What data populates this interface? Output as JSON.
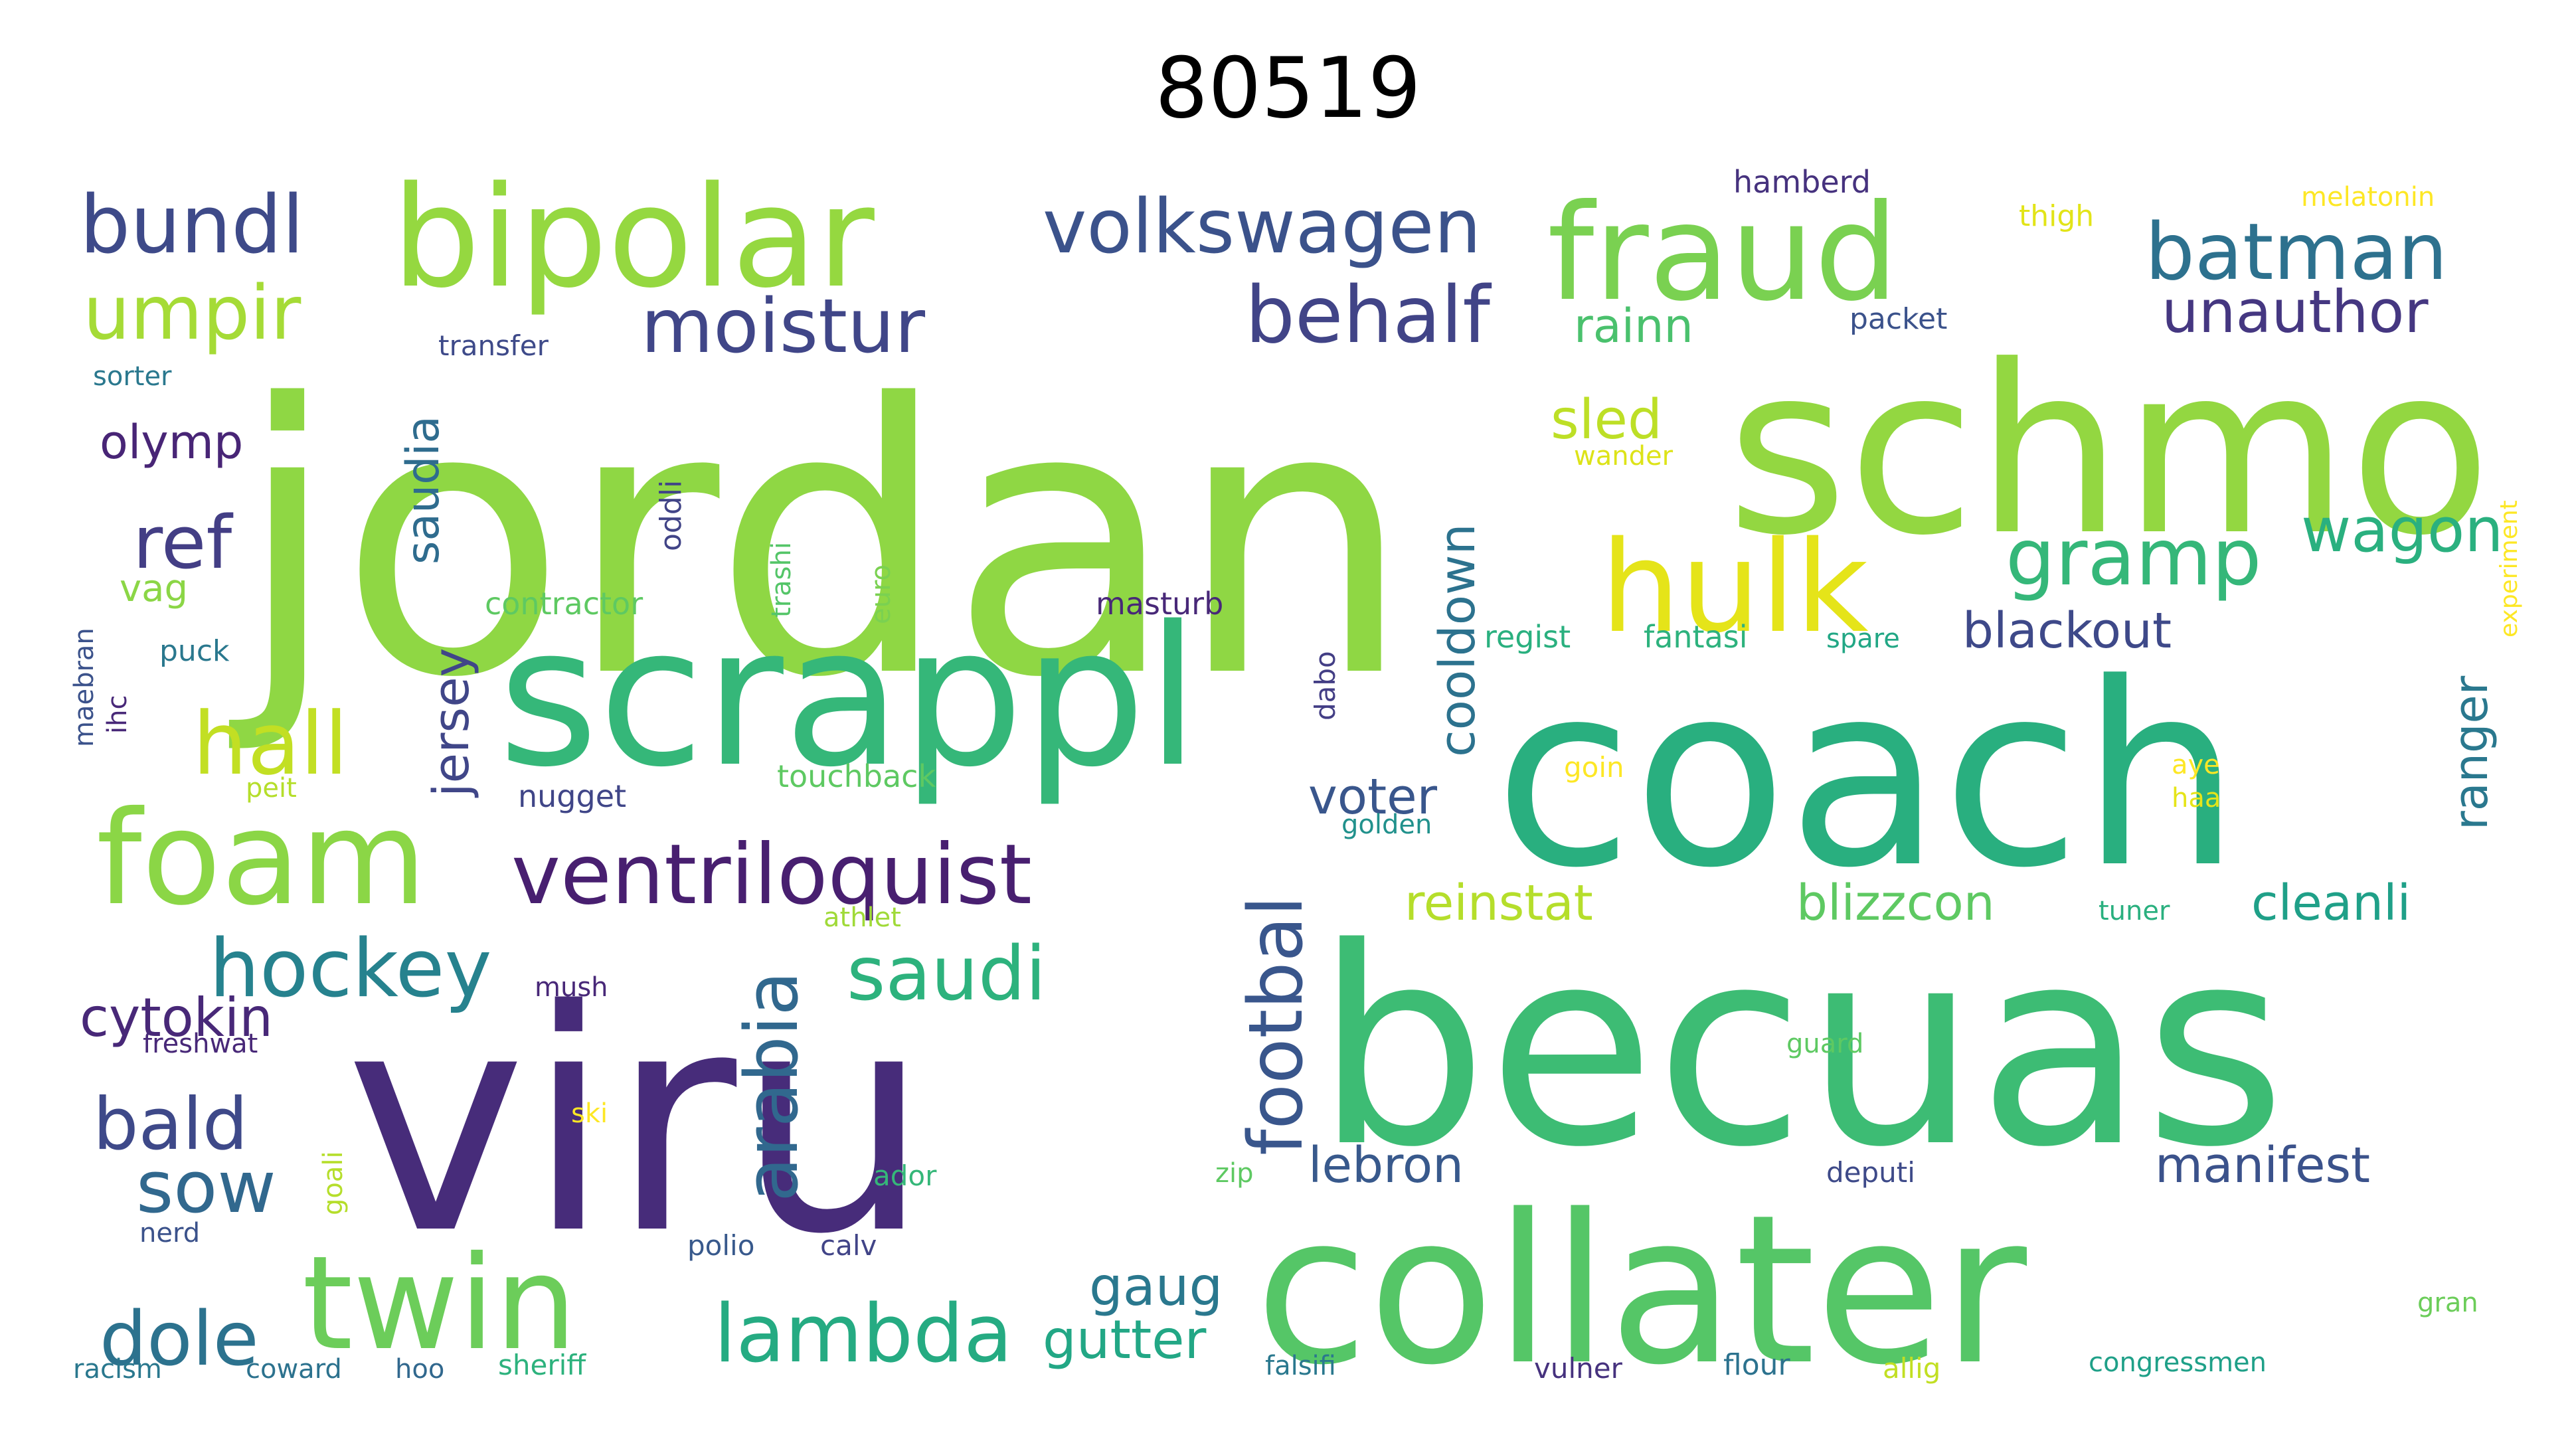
{
  "title": "80519",
  "words": [
    {
      "text": "jordan",
      "color": "#8fd744"
    },
    {
      "text": "schmo",
      "color": "#93d741"
    },
    {
      "text": "coach",
      "color": "#29af7f"
    },
    {
      "text": "becuas",
      "color": "#3dbc74"
    },
    {
      "text": "viru",
      "color": "#472c7a"
    },
    {
      "text": "collater",
      "color": "#55c667"
    },
    {
      "text": "scrappl",
      "color": "#35b779"
    },
    {
      "text": "bipolar",
      "color": "#95d840"
    },
    {
      "text": "fraud",
      "color": "#7ad151"
    },
    {
      "text": "hulk",
      "color": "#e5e419"
    },
    {
      "text": "foam",
      "color": "#8bd646"
    },
    {
      "text": "twin",
      "color": "#6ccd5a"
    },
    {
      "text": "ventriloquist",
      "color": "#481f70"
    },
    {
      "text": "hockey",
      "color": "#26828e"
    },
    {
      "text": "bundl",
      "color": "#3e4a89"
    },
    {
      "text": "volkswagen",
      "color": "#3b528b"
    },
    {
      "text": "batman",
      "color": "#2d718e"
    },
    {
      "text": "behalf",
      "color": "#414487"
    },
    {
      "text": "moistur",
      "color": "#404688"
    },
    {
      "text": "umpir",
      "color": "#a5db36"
    },
    {
      "text": "unauthor",
      "color": "#453781"
    },
    {
      "text": "gramp",
      "color": "#35b779"
    },
    {
      "text": "wagon",
      "color": "#2ab07f"
    },
    {
      "text": "hall",
      "color": "#c2df23"
    },
    {
      "text": "ref",
      "color": "#433e85"
    },
    {
      "text": "lambda",
      "color": "#25ab82"
    },
    {
      "text": "dole",
      "color": "#2c728e"
    },
    {
      "text": "saudi",
      "color": "#2db27d"
    },
    {
      "text": "arabia",
      "color": "#31688e"
    },
    {
      "text": "footbal",
      "color": "#39568c"
    },
    {
      "text": "bald",
      "color": "#3e4989"
    },
    {
      "text": "sow",
      "color": "#31688e"
    },
    {
      "text": "cytokin",
      "color": "#482878"
    },
    {
      "text": "gaug",
      "color": "#2a788e"
    },
    {
      "text": "gutter",
      "color": "#22a785"
    },
    {
      "text": "lebron",
      "color": "#38598c"
    },
    {
      "text": "manifest",
      "color": "#3b528b"
    },
    {
      "text": "blackout",
      "color": "#3e4989"
    },
    {
      "text": "cleanli",
      "color": "#1fa088"
    },
    {
      "text": "blizzcon",
      "color": "#5ec962"
    },
    {
      "text": "reinstat",
      "color": "#b5de2b"
    },
    {
      "text": "sled",
      "color": "#bddf26"
    },
    {
      "text": "rainn",
      "color": "#4ac16d"
    },
    {
      "text": "olymp",
      "color": "#482576"
    },
    {
      "text": "voter",
      "color": "#39568c"
    },
    {
      "text": "ranger",
      "color": "#2a788e"
    },
    {
      "text": "cooldown",
      "color": "#2c728e"
    },
    {
      "text": "jersey",
      "color": "#404688"
    },
    {
      "text": "saudia",
      "color": "#2f6c8e"
    },
    {
      "text": "vag",
      "color": "#8bd646"
    },
    {
      "text": "hamberd",
      "color": "#46327e"
    },
    {
      "text": "melatonin",
      "color": "#fde725"
    },
    {
      "text": "thigh",
      "color": "#e2e418"
    },
    {
      "text": "packet",
      "color": "#3b528b"
    },
    {
      "text": "transfer",
      "color": "#3e4a89"
    },
    {
      "text": "sorter",
      "color": "#2a788e"
    },
    {
      "text": "oddli",
      "color": "#414487"
    },
    {
      "text": "trashi",
      "color": "#54c568"
    },
    {
      "text": "euro",
      "color": "#7ad151"
    },
    {
      "text": "wander",
      "color": "#dde318"
    },
    {
      "text": "experiment",
      "color": "#fde725"
    },
    {
      "text": "contractor",
      "color": "#5ec962"
    },
    {
      "text": "masturb",
      "color": "#482878"
    },
    {
      "text": "puck",
      "color": "#2a788e"
    },
    {
      "text": "maebran",
      "color": "#3b528b"
    },
    {
      "text": "ihc",
      "color": "#482878"
    },
    {
      "text": "dabo",
      "color": "#433e85"
    },
    {
      "text": "regist",
      "color": "#2ab07f"
    },
    {
      "text": "fantasi",
      "color": "#2db27d"
    },
    {
      "text": "spare",
      "color": "#22a785"
    },
    {
      "text": "nugget",
      "color": "#404688"
    },
    {
      "text": "touchback",
      "color": "#5ec962"
    },
    {
      "text": "peit",
      "color": "#b5de2b"
    },
    {
      "text": "goin",
      "color": "#fde725"
    },
    {
      "text": "golden",
      "color": "#21918c"
    },
    {
      "text": "aye",
      "color": "#fde725"
    },
    {
      "text": "haa",
      "color": "#e5e419"
    },
    {
      "text": "athlet",
      "color": "#a0da39"
    },
    {
      "text": "tuner",
      "color": "#2ab07f"
    },
    {
      "text": "mush",
      "color": "#482878"
    },
    {
      "text": "freshwat",
      "color": "#482878"
    },
    {
      "text": "guard",
      "color": "#5ec962"
    },
    {
      "text": "ski",
      "color": "#fde725"
    },
    {
      "text": "goali",
      "color": "#b5de2b"
    },
    {
      "text": "ador",
      "color": "#35b779"
    },
    {
      "text": "zip",
      "color": "#5ec962"
    },
    {
      "text": "deputi",
      "color": "#3e4a89"
    },
    {
      "text": "nerd",
      "color": "#3b528b"
    },
    {
      "text": "polio",
      "color": "#38598c"
    },
    {
      "text": "calv",
      "color": "#414487"
    },
    {
      "text": "racism",
      "color": "#2a788e"
    },
    {
      "text": "coward",
      "color": "#2c728e"
    },
    {
      "text": "hoo",
      "color": "#31688e"
    },
    {
      "text": "sheriff",
      "color": "#2db27d"
    },
    {
      "text": "falsifi",
      "color": "#2a788e"
    },
    {
      "text": "vulner",
      "color": "#46327e"
    },
    {
      "text": "flour",
      "color": "#2c728e"
    },
    {
      "text": "allig",
      "color": "#c2df23"
    },
    {
      "text": "congressmen",
      "color": "#1fa088"
    },
    {
      "text": "gran",
      "color": "#6ccd5a"
    }
  ]
}
